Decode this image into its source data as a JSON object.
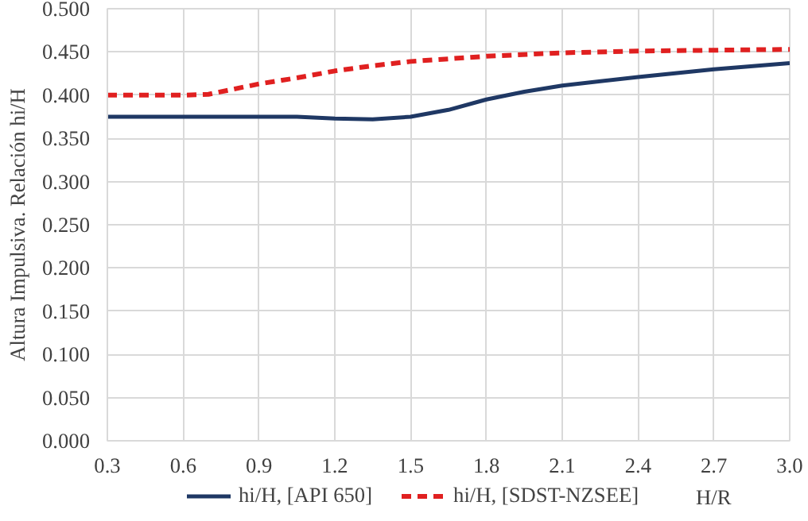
{
  "chart_data": {
    "type": "line",
    "xlabel": "H/R",
    "ylabel": "Altura Impulsiva. Relación hi/H",
    "xlim": [
      0.3,
      3.0
    ],
    "ylim": [
      0,
      0.5
    ],
    "xticks": [
      {
        "value": 0.3,
        "label": "0.3"
      },
      {
        "value": 0.6,
        "label": "0.6"
      },
      {
        "value": 0.9,
        "label": "0.9"
      },
      {
        "value": 1.2,
        "label": "1.2"
      },
      {
        "value": 1.5,
        "label": "1.5"
      },
      {
        "value": 1.8,
        "label": "1.8"
      },
      {
        "value": 2.1,
        "label": "2.1"
      },
      {
        "value": 2.4,
        "label": "2.4"
      },
      {
        "value": 2.7,
        "label": "2.7"
      },
      {
        "value": 3.0,
        "label": "3.0"
      }
    ],
    "yticks": [
      {
        "value": 0,
        "label": "0.000"
      },
      {
        "value": 0.05,
        "label": "0.050"
      },
      {
        "value": 0.1,
        "label": "0.100"
      },
      {
        "value": 0.15,
        "label": "0.150"
      },
      {
        "value": 0.2,
        "label": "0.200"
      },
      {
        "value": 0.25,
        "label": "0.250"
      },
      {
        "value": 0.3,
        "label": "0.300"
      },
      {
        "value": 0.35,
        "label": "0.350"
      },
      {
        "value": 0.4,
        "label": "0.400"
      },
      {
        "value": 0.45,
        "label": "0.450"
      },
      {
        "value": 0.5,
        "label": "0.500"
      }
    ],
    "grid": true,
    "legend": "bottom",
    "marker": "none",
    "series": [
      {
        "name": "hi/H, [API 650]",
        "color": "#1f3864",
        "line_style": "solid",
        "x": [
          0.3,
          0.6,
          0.9,
          1.05,
          1.2,
          1.35,
          1.5,
          1.65,
          1.8,
          1.95,
          2.1,
          2.4,
          2.7,
          3.0
        ],
        "values": [
          0.375,
          0.375,
          0.375,
          0.375,
          0.373,
          0.372,
          0.375,
          0.383,
          0.395,
          0.404,
          0.411,
          0.421,
          0.43,
          0.437
        ]
      },
      {
        "name": "hi/H, [SDST-NZSEE]",
        "color": "#e02020",
        "line_style": "dashed",
        "x": [
          0.3,
          0.6,
          0.7,
          0.9,
          1.05,
          1.2,
          1.35,
          1.5,
          1.8,
          2.1,
          2.4,
          2.7,
          3.0
        ],
        "values": [
          0.4,
          0.4,
          0.401,
          0.413,
          0.42,
          0.428,
          0.434,
          0.439,
          0.445,
          0.449,
          0.451,
          0.452,
          0.453
        ]
      }
    ]
  }
}
